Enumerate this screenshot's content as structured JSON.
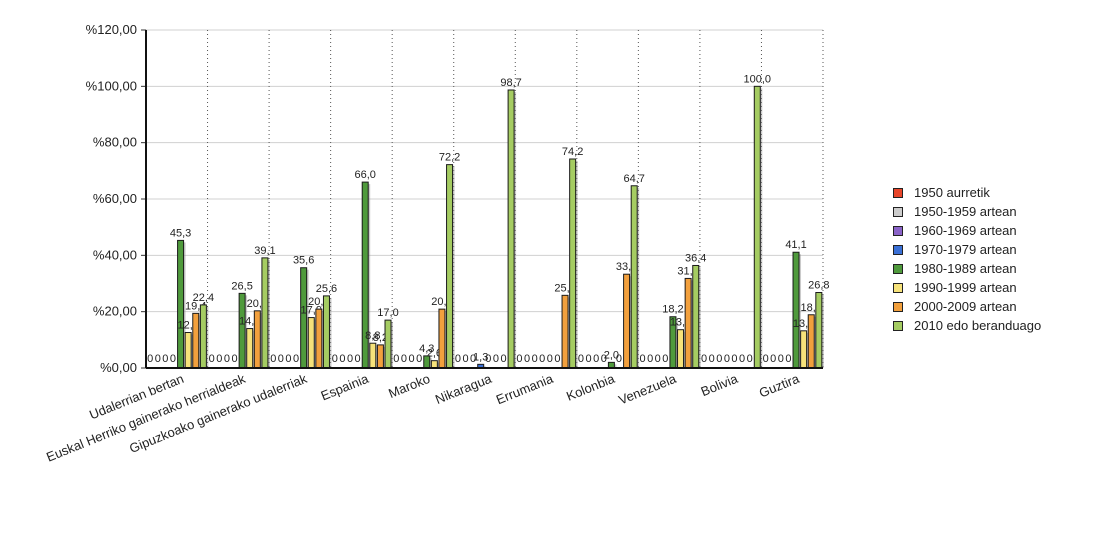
{
  "chart_data": {
    "type": "bar",
    "title": "",
    "xlabel": "",
    "ylabel": "",
    "ylim": [
      0,
      120
    ],
    "y_ticks": [
      "%0,00",
      "%20,00",
      "%40,00",
      "%60,00",
      "%80,00",
      "%100,00",
      "%120,00"
    ],
    "grid": true,
    "legend_position": "right",
    "categories": [
      "Udalerrian bertan",
      "Euskal Herriko gainerako herrialdeak",
      "Gipuzkoako gainerako udalerriak",
      "Espainia",
      "Maroko",
      "Nikaragua",
      "Errumania",
      "Kolonbia",
      "Venezuela",
      "Bolivia",
      "Guztira"
    ],
    "series": [
      {
        "name": "1950 aurretik",
        "color": "#e8462a",
        "values": [
          0,
          0,
          0,
          0,
          0,
          0,
          0,
          0,
          0,
          0,
          0
        ],
        "labels": [
          "0",
          "0",
          "0",
          "0",
          "0",
          "0",
          "0",
          "0",
          "0",
          "0",
          "0"
        ]
      },
      {
        "name": "1950-1959 artean",
        "color": "#cccccc",
        "values": [
          0,
          0,
          0,
          0,
          0,
          0,
          0,
          0,
          0,
          0,
          0
        ],
        "labels": [
          "0",
          "0",
          "0",
          "0",
          "0",
          "0",
          "0",
          "0",
          "0",
          "0",
          "0"
        ]
      },
      {
        "name": "1960-1969 artean",
        "color": "#8a63c8",
        "values": [
          0,
          0,
          0,
          0,
          0,
          0,
          0,
          0,
          0,
          0,
          0
        ],
        "labels": [
          "0",
          "0",
          "0",
          "0",
          "0",
          "0",
          "0",
          "0",
          "0",
          "0",
          "0"
        ]
      },
      {
        "name": "1970-1979 artean",
        "color": "#3a70d6",
        "values": [
          0,
          0,
          0,
          0,
          0,
          1.3,
          0,
          0,
          0,
          0,
          0
        ],
        "labels": [
          "0",
          "0",
          "0",
          "0",
          "0",
          "1,3",
          "0",
          "0",
          "0",
          "0",
          "0"
        ]
      },
      {
        "name": "1980-1989 artean",
        "color": "#4f9a3c",
        "values": [
          45.3,
          26.5,
          35.6,
          66.0,
          4.3,
          0,
          0,
          2.0,
          18.2,
          0,
          41.1
        ],
        "labels": [
          "45,3",
          "26,5",
          "35,6",
          "66,0",
          "4,3",
          "0",
          "0",
          "2,0",
          "18,2",
          "0",
          "41,1"
        ]
      },
      {
        "name": "1990-1999 artean",
        "color": "#f6e27a",
        "values": [
          12.6,
          14.0,
          17.9,
          8.8,
          2.6,
          0,
          0,
          0,
          13.6,
          0,
          13.2
        ],
        "labels": [
          "12,6",
          "14,0",
          "17,9",
          "8,8",
          "2,6",
          "0",
          "0",
          "0",
          "13,6",
          "0",
          "13,2"
        ]
      },
      {
        "name": "2000-2009 artean",
        "color": "#f2a03d",
        "values": [
          19.4,
          20.3,
          20.9,
          8.2,
          20.9,
          0,
          25.8,
          33.3,
          31.8,
          0,
          18.9
        ],
        "labels": [
          "19,4",
          "20,3",
          "20,9",
          "8,2",
          "20,9",
          "0",
          "25,8",
          "33,3",
          "31,8",
          "0",
          "18,9"
        ]
      },
      {
        "name": "2010 edo beranduago",
        "color": "#a5cc62",
        "values": [
          22.4,
          39.1,
          25.6,
          17.0,
          72.2,
          98.7,
          74.2,
          64.7,
          36.4,
          100.0,
          26.8
        ],
        "labels": [
          "22,4",
          "39,1",
          "25,6",
          "17,0",
          "72,2",
          "98,7",
          "74,2",
          "64,7",
          "36,4",
          "100,0",
          "26,8"
        ]
      }
    ]
  }
}
